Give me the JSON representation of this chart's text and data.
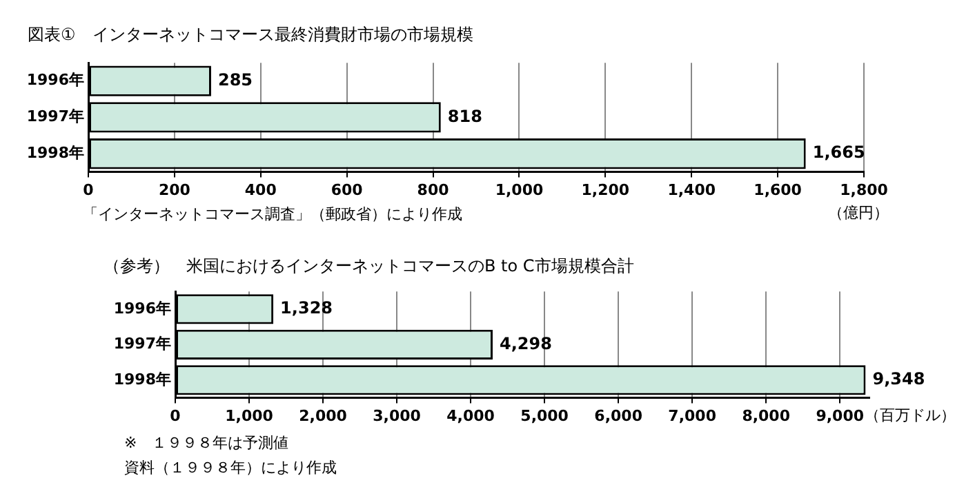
{
  "chart_data": [
    {
      "type": "bar",
      "orientation": "horizontal",
      "title": "図表①　インターネットコマース最終消費財市場の市場規模",
      "categories": [
        "1996年",
        "1997年",
        "1998年"
      ],
      "values": [
        285,
        818,
        1665
      ],
      "value_labels": [
        "285",
        "818",
        "1,665"
      ],
      "color": "#cdeadf",
      "xlim": [
        0,
        1800
      ],
      "xticks": [
        0,
        200,
        400,
        600,
        800,
        {
          "value": 1000,
          "label": "1,000"
        },
        {
          "value": 1200,
          "label": "1,200"
        },
        {
          "value": 1400,
          "label": "1,400"
        },
        {
          "value": 1600,
          "label": "1,600"
        },
        {
          "value": 1800,
          "label": "1,800"
        }
      ],
      "xlabel": "（億円）",
      "grid": "x",
      "legend": false,
      "annotations": [
        "「インターネットコマース調査」（郵政省）により作成"
      ]
    },
    {
      "type": "bar",
      "orientation": "horizontal",
      "title": "（参考）　米国におけるインターネットコマースのB to C市場規模合計",
      "categories": [
        "1996年",
        "1997年",
        "1998年"
      ],
      "values": [
        1328,
        4298,
        9348
      ],
      "value_labels": [
        "1,328",
        "4,298",
        "9,348"
      ],
      "color": "#cdeadf",
      "xlim": [
        0,
        9400
      ],
      "xticks": [
        0,
        {
          "value": 1000,
          "label": "1,000"
        },
        {
          "value": 2000,
          "label": "2,000"
        },
        {
          "value": 3000,
          "label": "3,000"
        },
        {
          "value": 4000,
          "label": "4,000"
        },
        {
          "value": 5000,
          "label": "5,000"
        },
        {
          "value": 6000,
          "label": "6,000"
        },
        {
          "value": 7000,
          "label": "7,000"
        },
        {
          "value": 8000,
          "label": "8,000"
        },
        {
          "value": 9000,
          "label": "9,000"
        }
      ],
      "xlabel": "（百万ドル）",
      "grid": "x",
      "legend": false,
      "annotations": [
        "※　１９９８年は予測値",
        "資料（１９９８年）により作成"
      ]
    }
  ]
}
